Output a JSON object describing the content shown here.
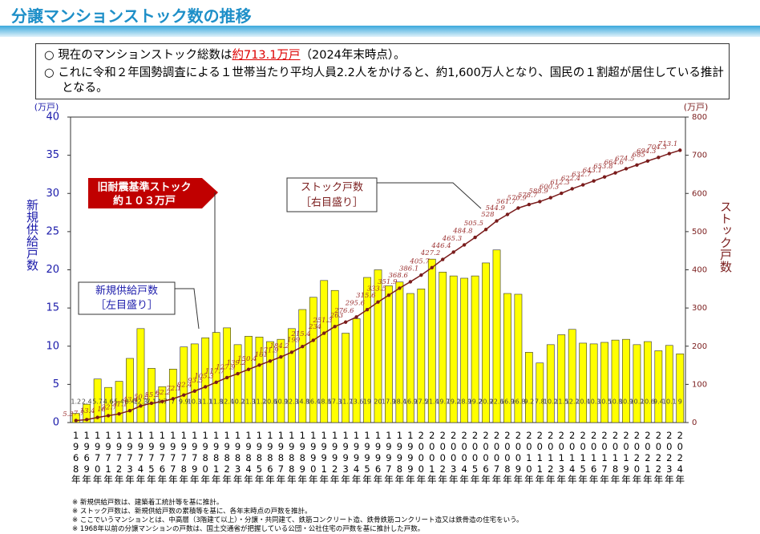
{
  "header": {
    "title": "分譲マンションストック数の推移",
    "bullets": [
      [
        "○ 現在のマンションストック総数は",
        "約713.1万戸",
        "（2024年末時点）。"
      ],
      [
        "○ これに令和２年国勢調査による１世帯当たり平均人員2.2人をかけると、約1,600万人となり、国民の１割超が居住している推計となる。"
      ]
    ]
  },
  "chart_data": {
    "type": "bar_line",
    "y_label": "新規供給戸数",
    "y2_label": "ストック戸数",
    "y_unit": "(万戸)",
    "y2_unit": "(万戸)",
    "annotations": {
      "old_standard": [
        "旧耐震基準ストック",
        "約１０３万戸"
      ],
      "bar_note": [
        "新規供給戸数",
        "［左目盛り］"
      ],
      "line_note": [
        "ストック戸数",
        "［右目盛り］"
      ]
    },
    "categories": [
      "1968年",
      "1969年",
      "1970年",
      "1971年",
      "1972年",
      "1973年",
      "1974年",
      "1975年",
      "1976年",
      "1977年",
      "1978年",
      "1979年",
      "1980年",
      "1981年",
      "1982年",
      "1983年",
      "1984年",
      "1985年",
      "1986年",
      "1987年",
      "1988年",
      "1989年",
      "1990年",
      "1991年",
      "1992年",
      "1993年",
      "1994年",
      "1995年",
      "1996年",
      "1997年",
      "1998年",
      "1999年",
      "2000年",
      "2001年",
      "2002年",
      "2003年",
      "2004年",
      "2005年",
      "2006年",
      "2007年",
      "2008年",
      "2009年",
      "2010年",
      "2011年",
      "2012年",
      "2013年",
      "2014年",
      "2015年",
      "2016年",
      "2017年",
      "2018年",
      "2019年",
      "2020年",
      "2021年",
      "2022年",
      "2023年",
      "2024年"
    ],
    "series": [
      {
        "name": "新規供給戸数",
        "color": "#ffff00",
        "values": [
          1.2,
          2.4,
          5.7,
          4.6,
          5.4,
          8.4,
          12.3,
          7.1,
          4.7,
          7.0,
          9.9,
          10.3,
          11.1,
          11.8,
          12.4,
          10.2,
          11.3,
          11.2,
          10.6,
          10.9,
          12.3,
          14.8,
          16.4,
          18.6,
          17.3,
          11.7,
          13.6,
          19.0,
          20.0,
          17.9,
          18.4,
          16.9,
          17.5,
          21.4,
          19.7,
          19.2,
          18.9,
          19.2,
          20.9,
          22.6,
          16.9,
          16.8,
          9.2,
          7.8,
          10.2,
          11.5,
          12.2,
          10.4,
          10.3,
          10.5,
          10.8,
          10.9,
          10.2,
          10.6,
          9.4,
          10.1,
          9.0
        ]
      },
      {
        "name": "ストック戸数",
        "color": "#7a1c1c",
        "axis": "y2",
        "values": [
          5.3,
          7.7,
          13.4,
          18.0,
          22.7,
          31.1,
          43.4,
          50.5,
          55.2,
          62.2,
          72.1,
          82.4,
          93.5,
          105.3,
          117.7,
          127.9,
          139.2,
          150.4,
          161.0,
          171.9,
          184.2,
          199.0,
          215.4,
          234.0,
          251.3,
          263.0,
          276.6,
          295.6,
          315.6,
          333.5,
          351.9,
          368.6,
          386.1,
          405.7,
          427.2,
          446.4,
          465.3,
          484.8,
          505.5,
          528.0,
          544.9,
          561.7,
          570.9,
          578.7,
          588.9,
          600.3,
          612.3,
          622.4,
          632.7,
          643.1,
          653.8,
          664.6,
          674.5,
          685.0,
          694.3,
          704.3,
          713.1
        ]
      }
    ],
    "ylim": [
      0,
      40
    ],
    "yticks": [
      0,
      5,
      10,
      15,
      20,
      25,
      30,
      35,
      40
    ],
    "y2lim": [
      0,
      800
    ],
    "y2ticks": [
      0,
      100,
      200,
      300,
      400,
      500,
      600,
      700,
      800
    ]
  },
  "notes": [
    "※ 新規供給戸数は、建築着工統計等を基に推計。",
    "※ ストック戸数は、新規供給戸数の累積等を基に、各年末時点の戸数を推計。",
    "※ ここでいうマンションとは、中高層（3階建て以上）・分譲・共同建て、鉄筋コンクリート造、鉄骨鉄筋コンクリート造又は鉄骨造の住宅をいう。",
    "※ 1968年以前の分譲マンションの戸数は、国土交通省が把握している公団・公社住宅の戸数を基に推計した戸数。"
  ]
}
